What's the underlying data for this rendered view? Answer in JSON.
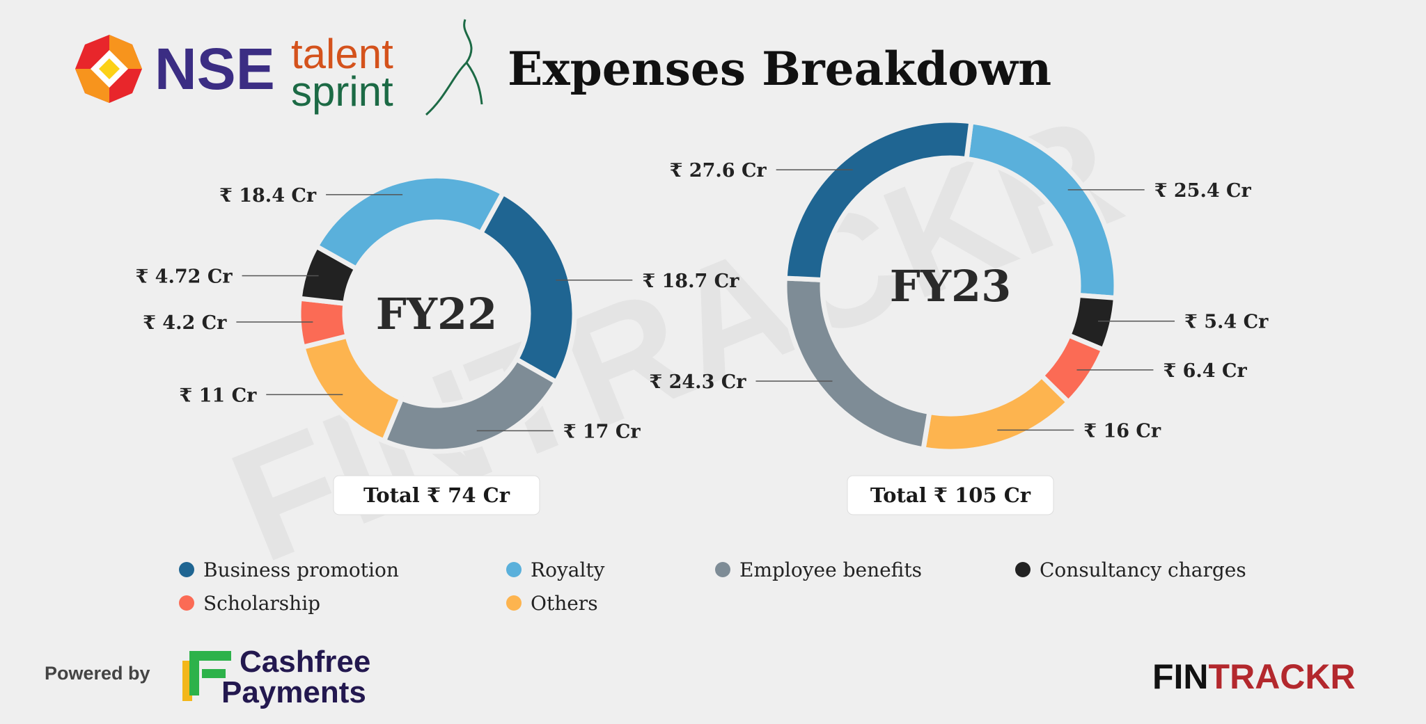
{
  "header": {
    "logo_nse": "NSE",
    "logo_talent": "talent",
    "logo_sprint": "sprint",
    "title": "Expenses Breakdown"
  },
  "watermark": "FINTRACKR",
  "chart_data": [
    {
      "type": "pie",
      "title": "FY22",
      "total_label": "Total ₹ 74 Cr",
      "categories": [
        "Business promotion",
        "Royalty",
        "Employee benefits",
        "Consultancy charges",
        "Scholarship",
        "Others"
      ],
      "values": [
        18.7,
        18.4,
        17,
        4.72,
        4.2,
        11
      ],
      "value_labels": [
        "₹ 18.7 Cr",
        "₹ 18.4 Cr",
        "₹ 17 Cr",
        "₹ 4.72 Cr",
        "₹ 4.2 Cr",
        "₹ 11 Cr"
      ],
      "colors": [
        "#1f6592",
        "#5ab0db",
        "#7e8c96",
        "#222222",
        "#fb6b55",
        "#fdb44f"
      ]
    },
    {
      "type": "pie",
      "title": "FY23",
      "total_label": "Total ₹ 105 Cr",
      "categories": [
        "Business promotion",
        "Royalty",
        "Employee benefits",
        "Consultancy charges",
        "Scholarship",
        "Others"
      ],
      "values": [
        27.6,
        25.4,
        24.3,
        5.4,
        6.4,
        16
      ],
      "value_labels": [
        "₹ 27.6 Cr",
        "₹ 25.4 Cr",
        "₹ 24.3 Cr",
        "₹ 5.4 Cr",
        "₹ 6.4 Cr",
        "₹ 16 Cr"
      ],
      "colors": [
        "#1f6592",
        "#5ab0db",
        "#7e8c96",
        "#222222",
        "#fb6b55",
        "#fdb44f"
      ]
    }
  ],
  "footer": {
    "powered_by": "Powered by",
    "cashfree": "Cashfree",
    "payments": "Payments",
    "fintrackr_fin": "FIN",
    "fintrackr_trackr": "TRACKR"
  }
}
